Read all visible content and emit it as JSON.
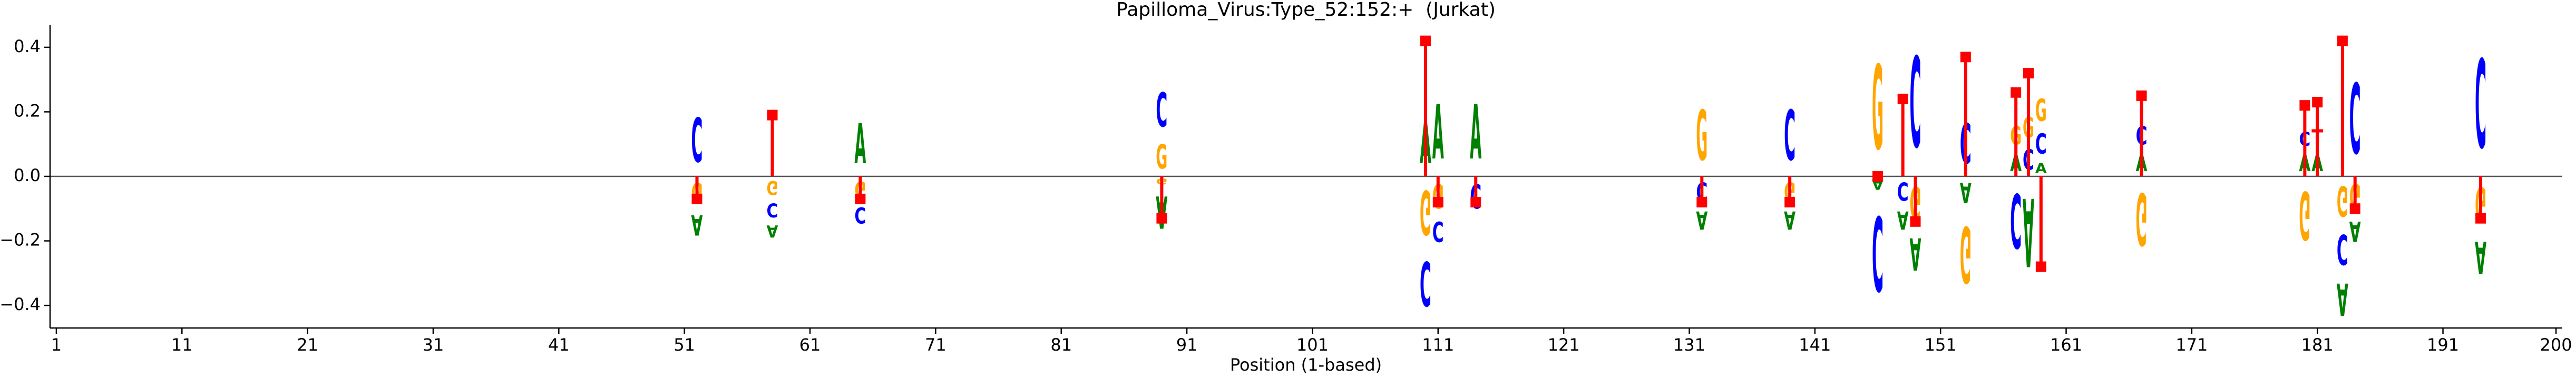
{
  "chart_data": {
    "type": "logo",
    "title": "Papilloma_Virus:Type_52:152:+  (Jurkat)",
    "x_label": "Position (1-based)",
    "xlim": [
      0.5,
      200.5
    ],
    "xticks": [
      1,
      11,
      21,
      31,
      41,
      51,
      61,
      71,
      81,
      91,
      101,
      111,
      121,
      131,
      141,
      151,
      161,
      171,
      181,
      191,
      200
    ],
    "ylim": [
      -0.47,
      0.47
    ],
    "yticks": [
      {
        "value": -0.4,
        "label": "−0.4"
      },
      {
        "value": -0.2,
        "label": "−0.2"
      },
      {
        "value": 0,
        "label": "0.0"
      },
      0.2,
      0.4
    ],
    "letter_colors": {
      "A": "#008000",
      "C": "#0000ff",
      "G": "#ffa500",
      "T": "#ff0000"
    },
    "marker_color": "#ff0000",
    "positions": [
      {
        "position": 52,
        "letters": [
          {
            "letter": "C",
            "value": 0.22
          },
          {
            "letter": "G",
            "value": -0.1
          },
          {
            "letter": "A",
            "value": -0.1
          }
        ],
        "marker": -0.07
      },
      {
        "position": 58,
        "letters": [
          {
            "letter": "G",
            "value": -0.07
          },
          {
            "letter": "C",
            "value": -0.07
          },
          {
            "letter": "A",
            "value": -0.06
          }
        ],
        "marker": 0.19
      },
      {
        "position": 65,
        "letters": [
          {
            "letter": "A",
            "value": 0.2
          },
          {
            "letter": "G",
            "value": -0.08
          },
          {
            "letter": "C",
            "value": -0.08
          }
        ],
        "marker": -0.07
      },
      {
        "position": 89,
        "letters": [
          {
            "letter": "G",
            "value": 0.12
          },
          {
            "letter": "C",
            "value": 0.17
          },
          {
            "letter": "G",
            "value": -0.03
          },
          {
            "letter": "A",
            "value": -0.16
          }
        ],
        "marker": -0.13
      },
      {
        "position": 110,
        "letters": [
          {
            "letter": "A",
            "value": 0.2
          },
          {
            "letter": "G",
            "value": -0.22
          },
          {
            "letter": "C",
            "value": -0.22
          }
        ],
        "marker": 0.42
      },
      {
        "position": 111,
        "letters": [
          {
            "letter": "A",
            "value": 0.27
          },
          {
            "letter": "G",
            "value": -0.12
          },
          {
            "letter": "C",
            "value": -0.1
          }
        ],
        "marker": -0.08
      },
      {
        "position": 114,
        "letters": [
          {
            "letter": "A",
            "value": 0.27
          },
          {
            "letter": "C",
            "value": -0.12
          }
        ],
        "marker": -0.08
      },
      {
        "position": 132,
        "letters": [
          {
            "letter": "G",
            "value": 0.25
          },
          {
            "letter": "C",
            "value": -0.09
          },
          {
            "letter": "A",
            "value": -0.09
          }
        ],
        "marker": -0.08
      },
      {
        "position": 139,
        "letters": [
          {
            "letter": "C",
            "value": 0.25
          },
          {
            "letter": "G",
            "value": -0.09
          },
          {
            "letter": "A",
            "value": -0.09
          }
        ],
        "marker": -0.08
      },
      {
        "position": 146,
        "letters": [
          {
            "letter": "G",
            "value": 0.42
          },
          {
            "letter": "A",
            "value": -0.05
          },
          {
            "letter": "C",
            "value": -0.37
          }
        ],
        "marker": 0
      },
      {
        "position": 148,
        "letters": [
          {
            "letter": "C",
            "value": -0.09
          },
          {
            "letter": "A",
            "value": -0.09
          }
        ],
        "marker": 0.24
      },
      {
        "position": 149,
        "letters": [
          {
            "letter": "C",
            "value": 0.45
          },
          {
            "letter": "G",
            "value": -0.16
          },
          {
            "letter": "A",
            "value": -0.16
          }
        ],
        "marker": -0.14
      },
      {
        "position": 153,
        "letters": [
          {
            "letter": "C",
            "value": 0.2
          },
          {
            "letter": "A",
            "value": -0.1
          },
          {
            "letter": "G",
            "value": -0.28
          }
        ],
        "marker": 0.37
      },
      {
        "position": 157,
        "letters": [
          {
            "letter": "A",
            "value": 0.08
          },
          {
            "letter": "G",
            "value": 0.09
          },
          {
            "letter": "C",
            "value": -0.27
          }
        ],
        "marker": 0.26
      },
      {
        "position": 158,
        "letters": [
          {
            "letter": "C",
            "value": 0.1
          },
          {
            "letter": "G",
            "value": 0.1
          },
          {
            "letter": "A",
            "value": -0.34
          }
        ],
        "marker": 0.32
      },
      {
        "position": 159,
        "letters": [
          {
            "letter": "A",
            "value": 0.05
          },
          {
            "letter": "C",
            "value": 0.1
          },
          {
            "letter": "G",
            "value": 0.11
          }
        ],
        "marker": -0.28
      },
      {
        "position": 167,
        "letters": [
          {
            "letter": "A",
            "value": 0.08
          },
          {
            "letter": "C",
            "value": 0.09
          },
          {
            "letter": "G",
            "value": -0.26
          }
        ],
        "marker": 0.25
      },
      {
        "position": 180,
        "letters": [
          {
            "letter": "A",
            "value": 0.08
          },
          {
            "letter": "C",
            "value": 0.07
          },
          {
            "letter": "G",
            "value": -0.24
          }
        ],
        "marker": 0.22
      },
      {
        "position": 181,
        "letters": [
          {
            "letter": "A",
            "value": 0.08
          },
          {
            "letter": "T",
            "value": 0.08
          }
        ],
        "marker": 0.23
      },
      {
        "position": 183,
        "letters": [
          {
            "letter": "G",
            "value": -0.15
          },
          {
            "letter": "C",
            "value": -0.15
          },
          {
            "letter": "A",
            "value": -0.16
          }
        ],
        "marker": 0.42
      },
      {
        "position": 184,
        "letters": [
          {
            "letter": "C",
            "value": 0.35
          },
          {
            "letter": "G",
            "value": -0.12
          },
          {
            "letter": "A",
            "value": -0.1
          }
        ],
        "marker": -0.1
      },
      {
        "position": 194,
        "letters": [
          {
            "letter": "C",
            "value": 0.44
          },
          {
            "letter": "G",
            "value": -0.17
          },
          {
            "letter": "A",
            "value": -0.16
          }
        ],
        "marker": -0.13
      }
    ]
  }
}
